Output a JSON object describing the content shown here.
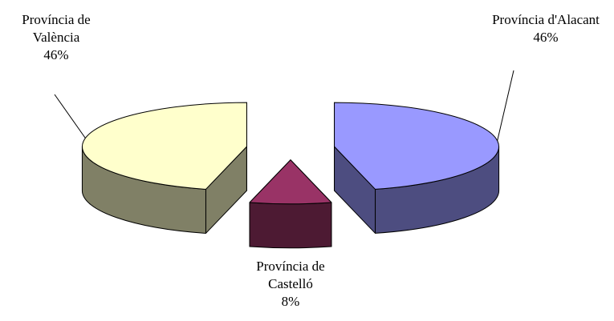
{
  "chart_data": {
    "type": "pie3d",
    "categories": [
      "Província d'Alacant",
      "Província de Castelló",
      "Província de València"
    ],
    "values": [
      46,
      8,
      46
    ],
    "value_labels": [
      "46%",
      "8%",
      "46%"
    ],
    "colors": [
      "#9999ff",
      "#993366",
      "#ffffcc"
    ]
  }
}
